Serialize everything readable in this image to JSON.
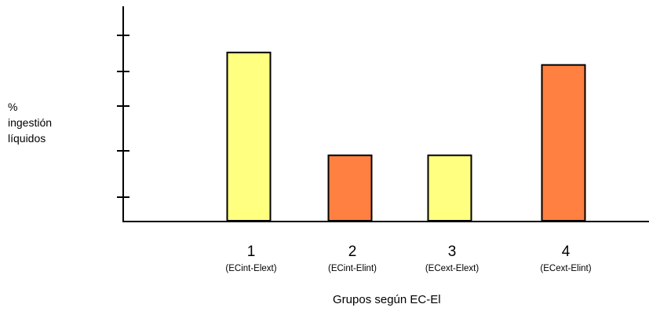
{
  "chart_data": {
    "type": "bar",
    "categories": [
      "1",
      "2",
      "3",
      "4"
    ],
    "category_sublabels": [
      "(ECint-Elext)",
      "(ECint-Elint)",
      "(ECext-Elext)",
      "(ECext-Elint)"
    ],
    "values": [
      5.4,
      2.1,
      2.1,
      5.0
    ],
    "bar_colors": [
      "#ffff80",
      "#ff8040",
      "#ffff80",
      "#ff8040"
    ],
    "ylabel_lines": [
      "%",
      "ingestión",
      "líquidos"
    ],
    "xlabel": "Grupos según EC-El",
    "ylim": [
      0,
      6
    ],
    "ytick_count": 5,
    "grid": false
  }
}
